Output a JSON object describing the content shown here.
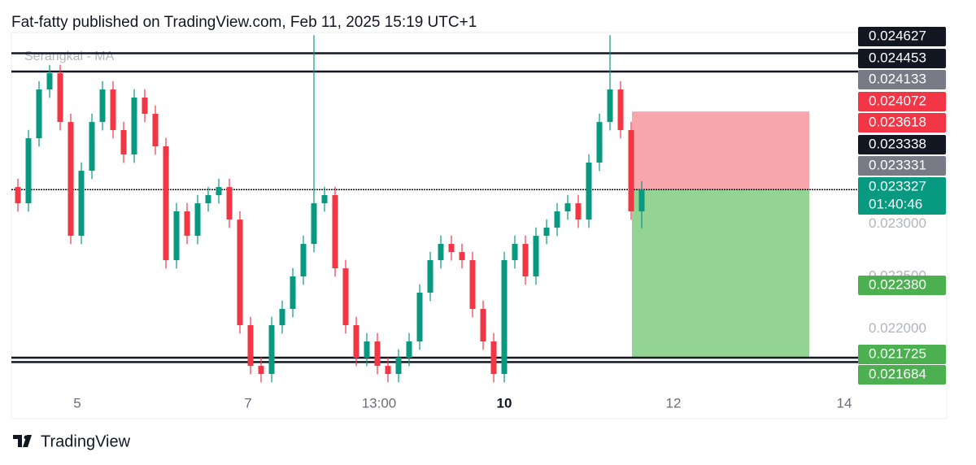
{
  "header": "Fat-fatty published on TradingView.com, Feb 11, 2025 15:19 UTC+1",
  "footer": "TradingView",
  "chart_data": {
    "type": "candlestick",
    "legend": "Serangkai - MA",
    "up_color": "#089981",
    "down_color": "#f23645",
    "ylim": [
      0.021454,
      0.024825
    ],
    "yticks": [
      {
        "value": 0.023,
        "label": "0.023000"
      },
      {
        "value": 0.0225,
        "label": "0.022500"
      },
      {
        "value": 0.022,
        "label": "0.022000"
      }
    ],
    "xlabels": [
      "5",
      "7",
      "13:00",
      "10",
      "12",
      "14"
    ],
    "open": [
      0.023352,
      0.023197,
      0.023817,
      0.024282,
      0.024437,
      0.023972,
      0.022887,
      0.023507,
      0.023972,
      0.024282,
      0.023895,
      0.023662,
      0.024205,
      0.02405,
      0.02374,
      0.022655,
      0.02312,
      0.022887,
      0.023197,
      0.023275,
      0.023352,
      0.023042,
      0.022035,
      0.021647,
      0.02157,
      0.022035,
      0.02219,
      0.0225,
      0.02281,
      0.023197,
      0.023275,
      0.022577,
      0.022035,
      0.021725,
      0.02188,
      0.021647,
      0.02157,
      0.021725,
      0.02188,
      0.022345,
      0.022655,
      0.02281,
      0.022732,
      0.022655,
      0.02219,
      0.02188,
      0.02157,
      0.022655,
      0.02281,
      0.0225,
      0.022887,
      0.022965,
      0.02312,
      0.023197,
      0.023042,
      0.023585,
      0.023972,
      0.024282,
      0.023895,
      0.02312
    ],
    "high": [
      0.023432,
      0.023897,
      0.024362,
      0.024517,
      0.024517,
      0.024052,
      0.023587,
      0.024052,
      0.024362,
      0.024362,
      0.023975,
      0.024285,
      0.024285,
      0.02413,
      0.02382,
      0.0232,
      0.0232,
      0.023277,
      0.023355,
      0.023432,
      0.023432,
      0.023122,
      0.022115,
      0.021727,
      0.022115,
      0.02227,
      0.02258,
      0.02289,
      0.0248,
      0.023355,
      0.023355,
      0.022657,
      0.022115,
      0.02196,
      0.02196,
      0.021727,
      0.021805,
      0.02196,
      0.022425,
      0.022735,
      0.02289,
      0.02289,
      0.022812,
      0.022735,
      0.02227,
      0.02196,
      0.022735,
      0.02289,
      0.02289,
      0.022967,
      0.023045,
      0.0232,
      0.023277,
      0.023277,
      0.023665,
      0.024052,
      0.0248,
      0.024362,
      0.023975,
      0.023407
    ],
    "low": [
      0.023117,
      0.023117,
      0.023737,
      0.024202,
      0.023892,
      0.022807,
      0.022807,
      0.023427,
      0.023892,
      0.023815,
      0.023582,
      0.023582,
      0.02397,
      0.02366,
      0.022575,
      0.022575,
      0.022807,
      0.022807,
      0.023117,
      0.023195,
      0.022962,
      0.021955,
      0.021567,
      0.02149,
      0.02149,
      0.021955,
      0.02211,
      0.02242,
      0.02273,
      0.023117,
      0.022497,
      0.021955,
      0.021645,
      0.021645,
      0.021567,
      0.02149,
      0.02149,
      0.021645,
      0.0218,
      0.022265,
      0.022575,
      0.022652,
      0.022575,
      0.02211,
      0.0218,
      0.02149,
      0.02149,
      0.022575,
      0.02242,
      0.02242,
      0.022807,
      0.022885,
      0.02304,
      0.022962,
      0.022962,
      0.023505,
      0.023892,
      0.023815,
      0.02304,
      0.02296
    ],
    "close": [
      0.023197,
      0.023817,
      0.024282,
      0.024437,
      0.023972,
      0.022887,
      0.023507,
      0.023972,
      0.024282,
      0.023895,
      0.023662,
      0.024205,
      0.02405,
      0.02374,
      0.022655,
      0.02312,
      0.022887,
      0.023197,
      0.023275,
      0.023352,
      0.023042,
      0.022035,
      0.021647,
      0.02157,
      0.022035,
      0.02219,
      0.0225,
      0.02281,
      0.023197,
      0.023275,
      0.022577,
      0.022035,
      0.021725,
      0.02188,
      0.021647,
      0.02157,
      0.021725,
      0.02188,
      0.022345,
      0.022655,
      0.02281,
      0.022732,
      0.022655,
      0.02219,
      0.02188,
      0.02157,
      0.022655,
      0.02281,
      0.0225,
      0.022887,
      0.022965,
      0.02312,
      0.023197,
      0.023042,
      0.023585,
      0.023972,
      0.024282,
      0.023895,
      0.02312,
      0.023327
    ],
    "badges": [
      {
        "value": 0.024627,
        "color": "#131722"
      },
      {
        "value": 0.024453,
        "color": "#131722"
      },
      {
        "value": 0.024133,
        "color": "#787b86"
      },
      {
        "value": 0.024072,
        "color": "#f23645"
      },
      {
        "value": 0.023618,
        "color": "#f23645"
      },
      {
        "value": 0.023338,
        "color": "#131722"
      },
      {
        "value": 0.023331,
        "color": "#787b86"
      },
      {
        "value": 0.023327,
        "color": "#089981",
        "countdown": "01:40:46"
      },
      {
        "value": {
          "value": 0.02238,
          "label": "0.022380"
        },
        "color": "#4caf50"
      },
      {
        "value": 0.021725,
        "color": "#4caf50"
      },
      {
        "value": 0.021684,
        "color": "#4caf50"
      }
    ]
  }
}
